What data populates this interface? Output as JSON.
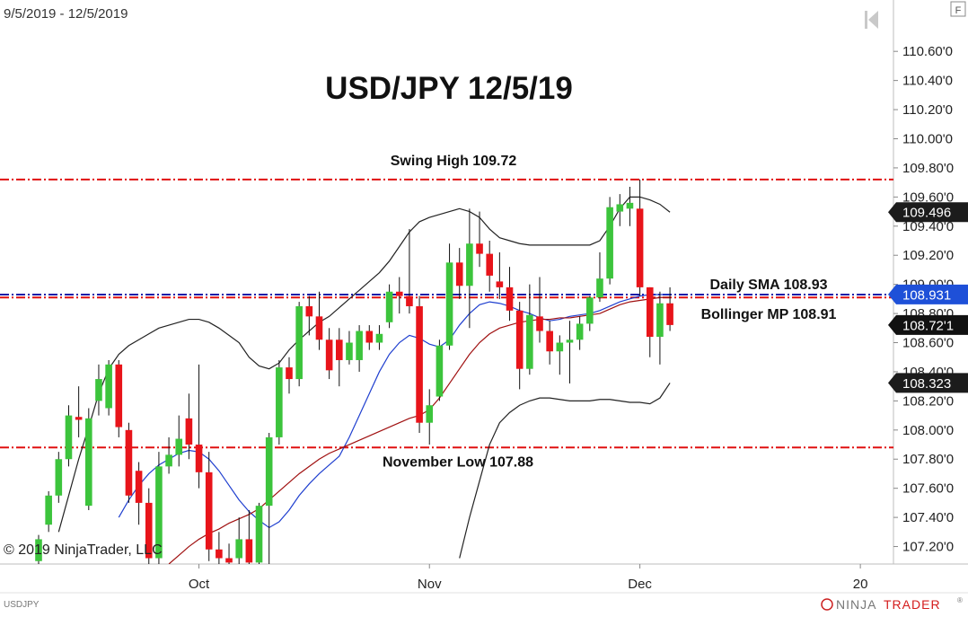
{
  "chart_data": {
    "type": "candlestick",
    "title": "USD/JPY 12/5/19",
    "date_range": "9/5/2019 - 12/5/2019",
    "copyright": "© 2019 NinjaTrader, LLC",
    "symbol": "USDJPY",
    "logo": [
      "NINJA",
      "TRADER",
      "®"
    ],
    "panel_button": "F",
    "up_color": "#3cc43c",
    "down_color": "#e8141a",
    "ylim": [
      107.08,
      110.78
    ],
    "yticks": [
      {
        "value": 107.2,
        "label": "107.20'0"
      },
      {
        "value": 107.4,
        "label": "107.40'0"
      },
      {
        "value": 107.6,
        "label": "107.60'0"
      },
      {
        "value": 107.8,
        "label": "107.80'0"
      },
      {
        "value": 108.0,
        "label": "108.00'0"
      },
      {
        "value": 108.2,
        "label": "108.20'0"
      },
      {
        "value": 108.4,
        "label": "108.40'0"
      },
      {
        "value": 108.6,
        "label": "108.60'0"
      },
      {
        "value": 108.8,
        "label": "108.80'0"
      },
      {
        "value": 109.0,
        "label": "109.00'0"
      },
      {
        "value": 109.2,
        "label": "109.20'0"
      },
      {
        "value": 109.4,
        "label": "109.40'0"
      },
      {
        "value": 109.6,
        "label": "109.60'0"
      },
      {
        "value": 109.8,
        "label": "109.80'0"
      },
      {
        "value": 110.0,
        "label": "110.00'0"
      },
      {
        "value": 110.2,
        "label": "110.20'0"
      },
      {
        "value": 110.4,
        "label": "110.40'0"
      },
      {
        "value": 110.6,
        "label": "110.60'0"
      }
    ],
    "grid": false,
    "categories": [
      null,
      null,
      null,
      null,
      null,
      null,
      null,
      null,
      null,
      null,
      null,
      null,
      null,
      null,
      null,
      null,
      "Oct",
      null,
      null,
      null,
      null,
      null,
      null,
      null,
      null,
      null,
      null,
      null,
      null,
      null,
      null,
      null,
      null,
      null,
      null,
      null,
      null,
      null,
      null,
      "Nov",
      null,
      null,
      null,
      null,
      null,
      null,
      null,
      null,
      null,
      null,
      null,
      null,
      null,
      null,
      null,
      null,
      null,
      null,
      null,
      null,
      "Dec",
      null,
      null,
      null,
      null,
      null,
      null,
      null,
      null,
      null,
      null,
      null,
      null,
      null,
      null,
      null,
      null,
      null,
      null,
      null,
      null,
      null,
      "20",
      null,
      null,
      null
    ],
    "open": [
      107.1,
      107.35,
      107.55,
      107.8,
      108.09,
      107.48,
      108.2,
      108.15,
      108.45,
      108.0,
      107.72,
      107.5,
      107.12,
      107.75,
      107.83,
      108.08,
      107.9,
      107.71,
      107.18,
      107.12,
      107.12,
      107.25,
      107.09,
      107.48,
      107.95,
      108.43,
      108.35,
      108.85,
      108.78,
      108.62,
      108.62,
      108.48,
      108.48,
      108.68,
      108.6,
      108.74,
      108.95,
      108.92,
      108.85,
      108.05,
      108.23,
      108.58,
      109.15,
      108.99,
      109.28,
      109.21,
      109.02,
      108.98,
      108.82,
      108.42,
      108.78,
      108.68,
      108.54,
      108.6,
      108.62,
      108.73,
      108.91,
      109.04,
      109.5,
      109.52,
      109.52,
      108.98,
      108.64,
      108.87,
      null,
      null,
      null,
      null,
      null,
      null,
      null,
      null,
      null,
      null,
      null,
      null,
      null,
      null,
      null,
      null,
      null,
      null,
      null,
      null,
      null,
      null
    ],
    "high": [
      107.28,
      107.58,
      107.85,
      108.17,
      108.3,
      108.15,
      108.45,
      108.48,
      108.48,
      108.05,
      107.78,
      107.6,
      107.85,
      107.95,
      108.1,
      108.25,
      108.45,
      107.85,
      107.3,
      107.22,
      107.4,
      107.45,
      107.5,
      107.98,
      108.48,
      108.5,
      108.88,
      108.92,
      108.95,
      108.7,
      108.7,
      108.68,
      108.72,
      108.72,
      108.72,
      109.0,
      109.05,
      109.38,
      108.92,
      108.28,
      108.62,
      109.28,
      109.25,
      109.52,
      109.5,
      109.3,
      109.22,
      109.12,
      108.88,
      109.0,
      109.05,
      108.75,
      108.65,
      108.75,
      108.78,
      108.92,
      109.22,
      109.6,
      109.62,
      109.67,
      109.72,
      108.98,
      108.95,
      108.98,
      null,
      null,
      null,
      null,
      null,
      null,
      null,
      null,
      null,
      null,
      null,
      null,
      null,
      null,
      null,
      null,
      null,
      null,
      null,
      null,
      null,
      null
    ],
    "low": [
      107.08,
      107.3,
      107.5,
      107.75,
      107.95,
      107.45,
      108.1,
      108.1,
      107.95,
      107.5,
      107.35,
      107.08,
      107.08,
      107.7,
      107.75,
      107.8,
      107.6,
      107.1,
      107.08,
      107.08,
      107.08,
      107.08,
      107.08,
      107.08,
      107.9,
      108.25,
      108.3,
      108.65,
      108.55,
      108.35,
      108.3,
      108.45,
      108.4,
      108.55,
      108.55,
      108.7,
      108.8,
      108.8,
      107.98,
      107.9,
      108.2,
      108.55,
      108.9,
      108.7,
      109.12,
      108.95,
      108.9,
      108.75,
      108.28,
      108.38,
      108.6,
      108.45,
      108.38,
      108.32,
      108.55,
      108.68,
      108.88,
      109.0,
      109.4,
      109.4,
      108.92,
      108.5,
      108.45,
      108.68,
      null,
      null,
      null,
      null,
      null,
      null,
      null,
      null,
      null,
      null,
      null,
      null,
      null,
      null,
      null,
      null,
      null,
      null,
      null,
      null,
      null,
      null
    ],
    "close": [
      107.25,
      107.55,
      107.8,
      108.1,
      108.07,
      108.08,
      108.35,
      108.45,
      108.02,
      107.55,
      107.5,
      107.12,
      107.75,
      107.83,
      107.94,
      107.9,
      107.71,
      107.18,
      107.12,
      107.09,
      107.25,
      107.09,
      107.48,
      107.95,
      108.43,
      108.35,
      108.85,
      108.78,
      108.62,
      108.41,
      108.48,
      108.6,
      108.68,
      108.6,
      108.66,
      108.95,
      108.92,
      108.85,
      108.05,
      108.17,
      108.58,
      109.15,
      108.99,
      109.28,
      109.21,
      109.06,
      108.98,
      108.82,
      108.42,
      108.79,
      108.68,
      108.54,
      108.6,
      108.62,
      108.73,
      108.91,
      109.04,
      109.53,
      109.55,
      109.56,
      108.98,
      108.64,
      108.87,
      108.721,
      null,
      null,
      null,
      null,
      null,
      null,
      null,
      null,
      null,
      null,
      null,
      null,
      null,
      null,
      null,
      null,
      null,
      null,
      null,
      null,
      null,
      null
    ],
    "lines": [
      {
        "color": "#222222",
        "values": [
          null,
          null,
          107.3,
          107.55,
          107.8,
          108.02,
          108.25,
          108.42,
          108.52,
          108.58,
          108.62,
          108.66,
          108.7,
          108.72,
          108.74,
          108.76,
          108.76,
          108.74,
          108.7,
          108.65,
          108.6,
          108.5,
          108.44,
          108.42,
          108.46,
          108.55,
          108.62,
          108.68,
          108.74,
          108.78,
          108.84,
          108.9,
          108.96,
          109.02,
          109.08,
          109.16,
          109.26,
          109.36,
          109.43,
          109.46,
          109.48,
          109.5,
          109.52,
          109.5,
          109.46,
          109.38,
          109.32,
          109.3,
          109.28,
          109.27,
          109.27,
          109.27,
          109.27,
          109.27,
          109.27,
          109.27,
          109.3,
          109.4,
          109.52,
          109.6,
          109.6,
          109.58,
          109.55,
          109.496,
          null,
          null,
          null,
          null,
          null,
          null,
          null,
          null,
          null,
          null,
          null,
          null,
          null,
          null,
          null,
          null,
          null,
          null,
          null,
          null,
          null,
          null
        ]
      },
      {
        "color": "#222222",
        "values": [
          null,
          null,
          null,
          null,
          null,
          null,
          null,
          null,
          null,
          null,
          null,
          null,
          null,
          null,
          null,
          null,
          null,
          null,
          null,
          null,
          null,
          null,
          null,
          null,
          null,
          null,
          null,
          null,
          null,
          null,
          null,
          null,
          null,
          null,
          null,
          null,
          null,
          null,
          null,
          null,
          null,
          null,
          107.12,
          107.4,
          107.65,
          107.9,
          108.05,
          108.12,
          108.17,
          108.2,
          108.22,
          108.22,
          108.21,
          108.2,
          108.2,
          108.2,
          108.21,
          108.21,
          108.2,
          108.19,
          108.19,
          108.18,
          108.22,
          108.323,
          null,
          null,
          null,
          null,
          null,
          null,
          null,
          null,
          null,
          null,
          null,
          null,
          null,
          null,
          null,
          null,
          null,
          null,
          null,
          null,
          null,
          null
        ]
      },
      {
        "color": "#1f3fcf",
        "values": [
          null,
          null,
          null,
          null,
          null,
          null,
          null,
          null,
          107.4,
          107.52,
          107.62,
          107.7,
          107.76,
          107.8,
          107.84,
          107.86,
          107.85,
          107.8,
          107.72,
          107.62,
          107.52,
          107.44,
          107.38,
          107.33,
          107.37,
          107.45,
          107.55,
          107.63,
          107.7,
          107.76,
          107.82,
          107.95,
          108.1,
          108.25,
          108.4,
          108.52,
          108.6,
          108.65,
          108.63,
          108.59,
          108.57,
          108.62,
          108.72,
          108.8,
          108.86,
          108.88,
          108.87,
          108.85,
          108.82,
          108.8,
          108.77,
          108.75,
          108.76,
          108.78,
          108.79,
          108.8,
          108.82,
          108.85,
          108.88,
          108.9,
          108.92,
          108.93,
          108.93,
          108.931,
          null,
          null,
          null,
          null,
          null,
          null,
          null,
          null,
          null,
          null,
          null,
          null,
          null,
          null,
          null,
          null,
          null,
          null,
          null,
          null,
          null,
          null
        ]
      },
      {
        "color": "#a01010",
        "values": [
          null,
          null,
          null,
          null,
          null,
          null,
          null,
          null,
          null,
          null,
          null,
          null,
          null,
          107.08,
          107.14,
          107.2,
          107.25,
          107.29,
          107.32,
          107.36,
          107.39,
          107.42,
          107.46,
          107.52,
          107.58,
          107.64,
          107.7,
          107.75,
          107.8,
          107.84,
          107.87,
          107.9,
          107.93,
          107.96,
          107.99,
          108.02,
          108.05,
          108.08,
          108.1,
          108.14,
          108.22,
          108.32,
          108.42,
          108.52,
          108.6,
          108.66,
          108.7,
          108.72,
          108.74,
          108.75,
          108.76,
          108.76,
          108.77,
          108.77,
          108.78,
          108.79,
          108.8,
          108.83,
          108.86,
          108.88,
          108.89,
          108.9,
          108.91,
          108.91,
          null,
          null,
          null,
          null,
          null,
          null,
          null,
          null,
          null,
          null,
          null,
          null,
          null,
          null,
          null,
          null,
          null,
          null,
          null,
          null,
          null,
          null
        ]
      }
    ],
    "reference_lines": [
      {
        "value": 109.72,
        "label": "Swing High 109.72",
        "color": "#e01010"
      },
      {
        "value": 108.93,
        "label": "Daily SMA 108.93",
        "color": "#1a1aa8"
      },
      {
        "value": 108.91,
        "label": "Bollinger MP 108.91",
        "color": "#e01010"
      },
      {
        "value": 107.88,
        "label": "November Low 107.88",
        "color": "#e01010"
      }
    ],
    "price_tags": [
      {
        "value": 109.496,
        "color": "#1c1c1c"
      },
      {
        "value": 108.931,
        "color": "#1e50d8"
      },
      {
        "value": 108.721,
        "label": "108.72'1",
        "color": "#111111"
      },
      {
        "value": 108.323,
        "color": "#1c1c1c"
      }
    ]
  }
}
